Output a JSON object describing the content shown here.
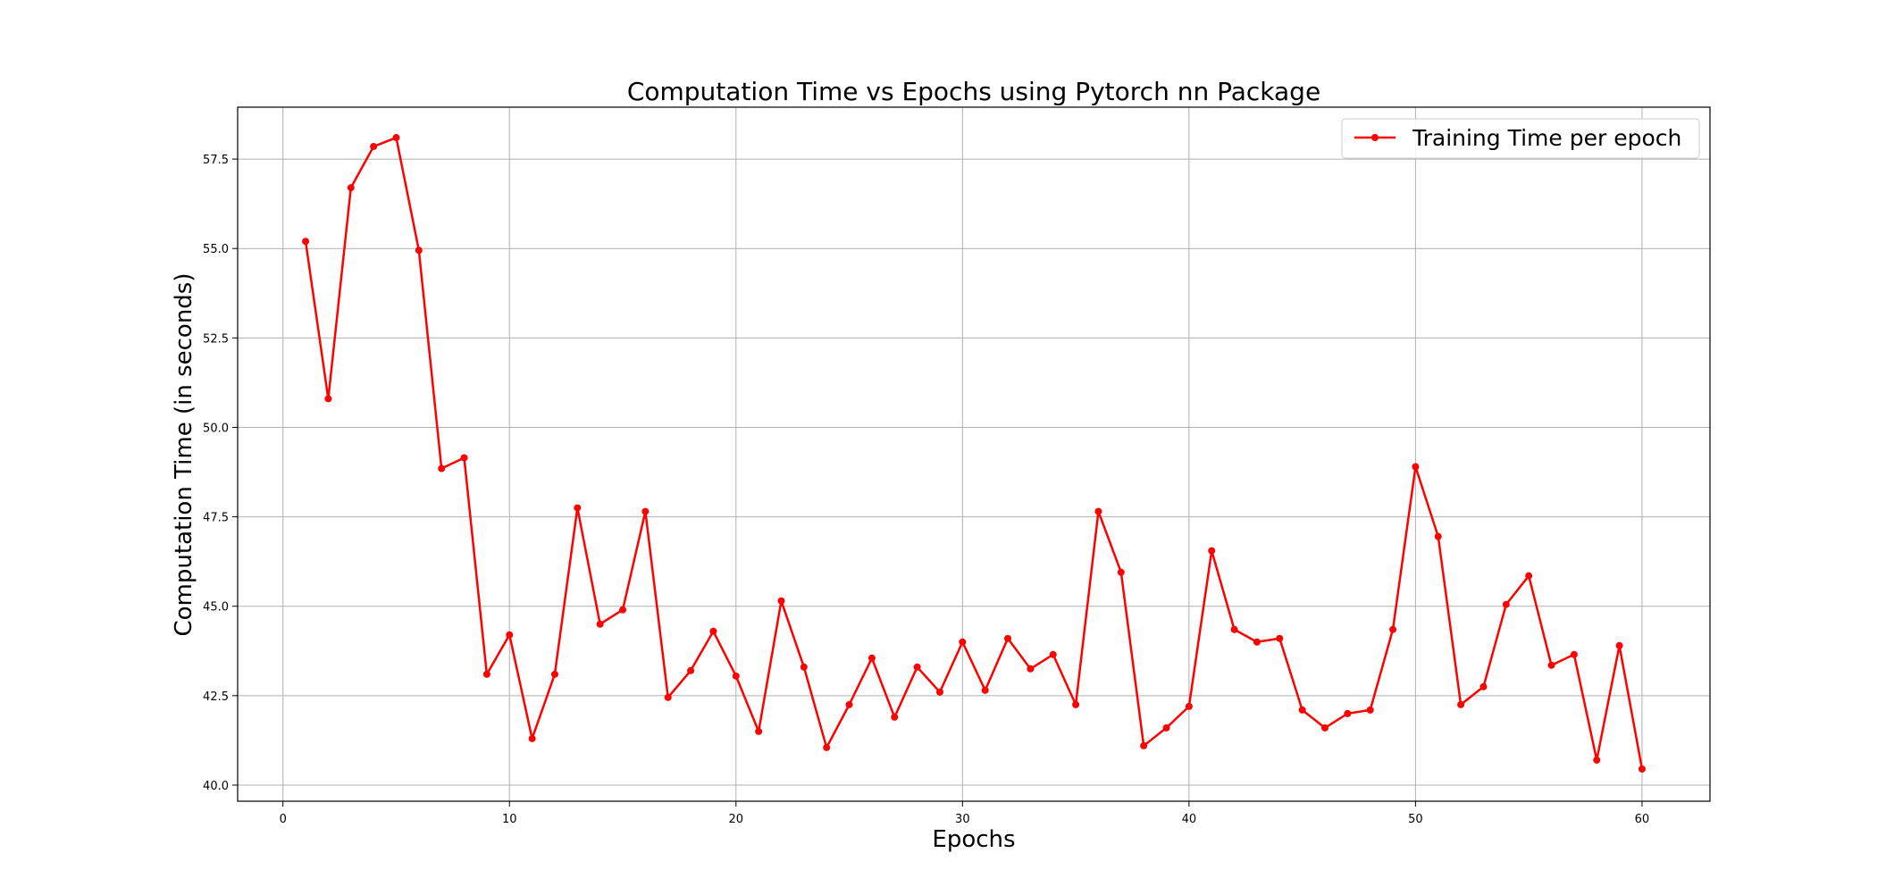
{
  "chart_data": {
    "type": "line",
    "title": "Computation Time vs Epochs using  Pytorch nn Package",
    "xlabel": "Epochs",
    "ylabel": "Computation Time (in seconds)",
    "xlim": [
      -2,
      63
    ],
    "ylim": [
      39.55,
      58.95
    ],
    "xticks": [
      0,
      10,
      20,
      30,
      40,
      50,
      60
    ],
    "xtick_labels": [
      "0",
      "10",
      "20",
      "30",
      "40",
      "50",
      "60"
    ],
    "yticks": [
      40.0,
      42.5,
      45.0,
      47.5,
      50.0,
      52.5,
      55.0,
      57.5
    ],
    "ytick_labels": [
      "40.0",
      "42.5",
      "45.0",
      "47.5",
      "50.0",
      "52.5",
      "55.0",
      "57.5"
    ],
    "grid": true,
    "legend_position": "top-right",
    "series": [
      {
        "name": "Training Time per epoch",
        "color": "#ff0000",
        "marker": "circle",
        "x": [
          1,
          2,
          3,
          4,
          5,
          6,
          7,
          8,
          9,
          10,
          11,
          12,
          13,
          14,
          15,
          16,
          17,
          18,
          19,
          20,
          21,
          22,
          23,
          24,
          25,
          26,
          27,
          28,
          29,
          30,
          31,
          32,
          33,
          34,
          35,
          36,
          37,
          38,
          39,
          40,
          41,
          42,
          43,
          44,
          45,
          46,
          47,
          48,
          49,
          50,
          51,
          52,
          53,
          54,
          55,
          56,
          57,
          58,
          59,
          60
        ],
        "y": [
          55.2,
          50.8,
          56.7,
          57.85,
          58.1,
          54.95,
          48.85,
          49.15,
          43.1,
          44.2,
          41.3,
          43.1,
          47.75,
          44.5,
          44.9,
          47.65,
          42.45,
          43.2,
          44.3,
          43.05,
          41.5,
          45.15,
          43.3,
          41.05,
          42.25,
          43.55,
          41.9,
          43.3,
          42.6,
          44.0,
          42.65,
          44.1,
          43.25,
          43.65,
          42.25,
          47.65,
          45.95,
          41.1,
          41.6,
          42.2,
          46.55,
          44.35,
          44.0,
          44.1,
          42.1,
          41.6,
          42.0,
          42.1,
          44.35,
          48.9,
          46.95,
          42.25,
          42.75,
          45.05,
          45.85,
          43.35,
          43.65,
          40.7,
          43.9,
          40.45
        ]
      }
    ]
  }
}
